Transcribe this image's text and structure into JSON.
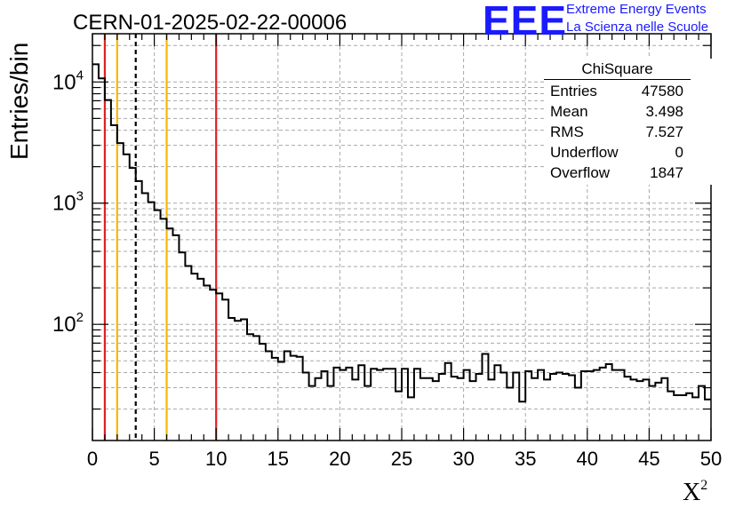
{
  "title": "CERN-01-2025-02-22-00006",
  "logo": {
    "mark": "EEE",
    "line1": "Extreme Energy Events",
    "line2": "La Scienza nelle Scuole",
    "color": "#1a1aff"
  },
  "ylabel": "Entries/bin",
  "xlabel": "X",
  "xlabel_sup": "2",
  "stats": {
    "title": "ChiSquare",
    "rows": [
      {
        "label": "Entries",
        "value": "47580"
      },
      {
        "label": "Mean",
        "value": "3.498"
      },
      {
        "label": "RMS",
        "value": "7.527"
      },
      {
        "label": "Underflow",
        "value": "0"
      },
      {
        "label": "Overflow",
        "value": "1847"
      }
    ]
  },
  "chart_data": {
    "type": "histogram",
    "title": "CERN-01-2025-02-22-00006",
    "xlabel": "X2",
    "ylabel": "Entries/bin",
    "xlim": [
      0,
      50
    ],
    "ylim": [
      11,
      25000
    ],
    "y_scale": "log",
    "grid": true,
    "bin_width": 0.5,
    "x_ticks": [
      0,
      5,
      10,
      15,
      20,
      25,
      30,
      35,
      40,
      45,
      50
    ],
    "y_tick_labels": [
      "10^2",
      "10^3",
      "10^4"
    ],
    "y_ticks": [
      100,
      1000,
      10000
    ],
    "values": [
      14000,
      10700,
      7100,
      4400,
      3130,
      2530,
      1950,
      1520,
      1210,
      1020,
      875,
      743,
      618,
      543,
      392,
      303,
      262,
      238,
      209,
      193,
      180,
      160,
      113,
      107,
      110,
      83,
      80,
      69,
      60,
      53,
      49,
      60,
      55,
      54,
      40,
      31,
      36,
      41,
      31,
      44,
      42,
      44,
      35,
      46,
      31,
      43,
      42,
      43,
      43,
      28,
      43,
      25,
      43,
      36,
      36,
      34,
      39,
      48,
      37,
      36,
      42,
      34,
      39,
      57,
      35,
      46,
      40,
      30,
      40,
      23,
      41,
      36,
      42,
      35,
      39,
      40,
      39,
      38,
      30,
      41,
      41,
      42,
      44,
      47,
      42,
      42,
      37,
      35,
      34,
      35,
      31,
      33,
      36,
      28,
      26,
      26,
      27,
      25,
      31,
      24
    ],
    "reference_lines": [
      {
        "x": 1,
        "color": "#e02020",
        "style": "solid"
      },
      {
        "x": 2,
        "color": "#f5b800",
        "style": "solid"
      },
      {
        "x": 3.5,
        "color": "#000000",
        "style": "dashed"
      },
      {
        "x": 6,
        "color": "#f5b800",
        "style": "solid"
      },
      {
        "x": 10,
        "color": "#e02020",
        "style": "solid"
      }
    ]
  }
}
